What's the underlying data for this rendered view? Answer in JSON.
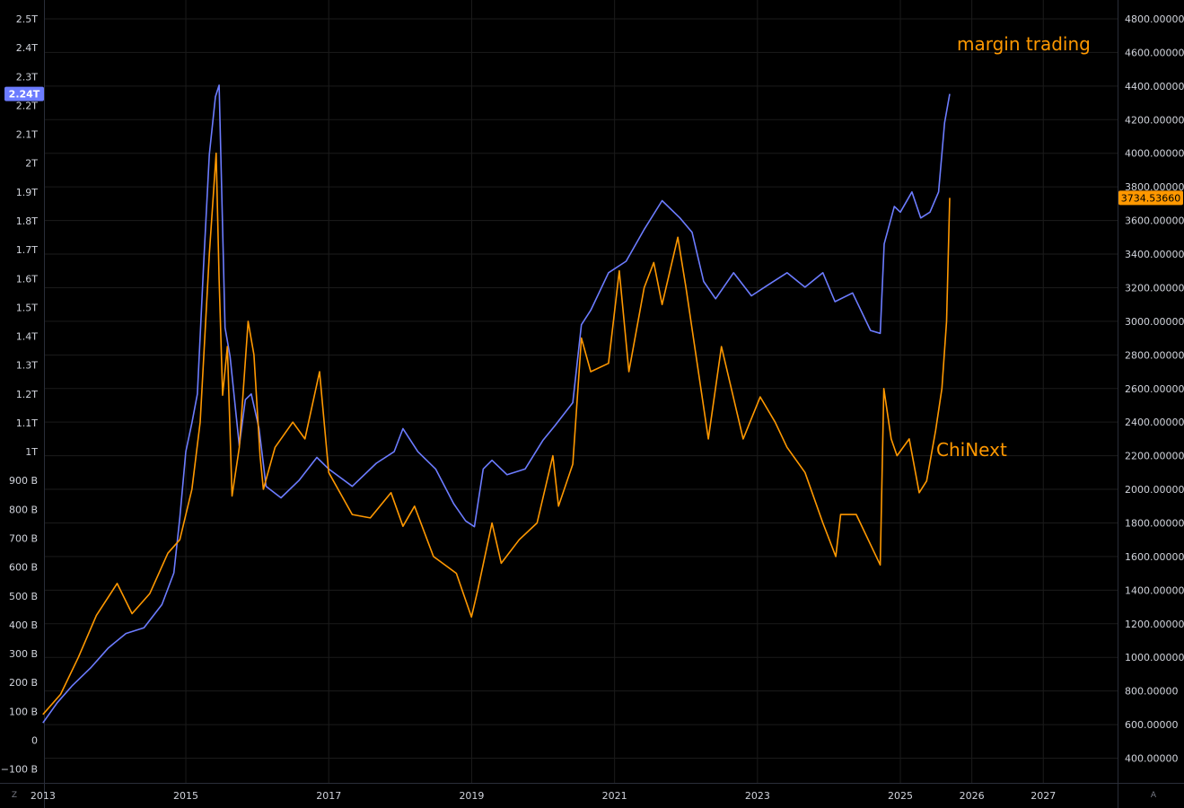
{
  "chart_data": {
    "type": "line",
    "theme": {
      "background": "#000000",
      "grid": "#1b1b1b",
      "axis_text": "#d1d4dc",
      "axis_line": "#2a2e39"
    },
    "x_axis": {
      "ticks": [
        {
          "label": "2013",
          "date": "2013-01-01"
        },
        {
          "label": "2015",
          "date": "2015-01-01"
        },
        {
          "label": "2017",
          "date": "2017-01-01"
        },
        {
          "label": "2019",
          "date": "2019-01-01"
        },
        {
          "label": "2021",
          "date": "2021-01-01"
        },
        {
          "label": "2023",
          "date": "2023-01-01"
        },
        {
          "label": "2025",
          "date": "2025-01-01"
        },
        {
          "label": "2026",
          "date": "2026-01-01"
        },
        {
          "label": "2027",
          "date": "2027-01-01"
        }
      ]
    },
    "left_axis": {
      "ylim": [
        -100,
        2500
      ],
      "units": "billions",
      "ticks": [
        {
          "label": "2.5T",
          "value": 2500
        },
        {
          "label": "2.4T",
          "value": 2400
        },
        {
          "label": "2.3T",
          "value": 2300
        },
        {
          "label": "2.2T",
          "value": 2200
        },
        {
          "label": "2.1T",
          "value": 2100
        },
        {
          "label": "2T",
          "value": 2000
        },
        {
          "label": "1.9T",
          "value": 1900
        },
        {
          "label": "1.8T",
          "value": 1800
        },
        {
          "label": "1.7T",
          "value": 1700
        },
        {
          "label": "1.6T",
          "value": 1600
        },
        {
          "label": "1.5T",
          "value": 1500
        },
        {
          "label": "1.4T",
          "value": 1400
        },
        {
          "label": "1.3T",
          "value": 1300
        },
        {
          "label": "1.2T",
          "value": 1200
        },
        {
          "label": "1.1T",
          "value": 1100
        },
        {
          "label": "1T",
          "value": 1000
        },
        {
          "label": "900 B",
          "value": 900
        },
        {
          "label": "800 B",
          "value": 800
        },
        {
          "label": "700 B",
          "value": 700
        },
        {
          "label": "600 B",
          "value": 600
        },
        {
          "label": "500 B",
          "value": 500
        },
        {
          "label": "400 B",
          "value": 400
        },
        {
          "label": "300 B",
          "value": 300
        },
        {
          "label": "200 B",
          "value": 200
        },
        {
          "label": "100 B",
          "value": 100
        },
        {
          "label": "0",
          "value": 0
        },
        {
          "label": "−100 B",
          "value": -100
        }
      ],
      "last_value_label": "2.24T",
      "last_value": 2240
    },
    "right_axis": {
      "ylim": [
        300,
        4850
      ],
      "ticks": [
        {
          "label": "4800.00000",
          "value": 4800
        },
        {
          "label": "4600.00000",
          "value": 4600
        },
        {
          "label": "4400.00000",
          "value": 4400
        },
        {
          "label": "4200.00000",
          "value": 4200
        },
        {
          "label": "4000.00000",
          "value": 4000
        },
        {
          "label": "3800.00000",
          "value": 3800
        },
        {
          "label": "3600.00000",
          "value": 3600
        },
        {
          "label": "3400.00000",
          "value": 3400
        },
        {
          "label": "3200.00000",
          "value": 3200
        },
        {
          "label": "3000.00000",
          "value": 3000
        },
        {
          "label": "2800.00000",
          "value": 2800
        },
        {
          "label": "2600.00000",
          "value": 2600
        },
        {
          "label": "2400.00000",
          "value": 2400
        },
        {
          "label": "2200.00000",
          "value": 2200
        },
        {
          "label": "2000.00000",
          "value": 2000
        },
        {
          "label": "1800.00000",
          "value": 1800
        },
        {
          "label": "1600.00000",
          "value": 1600
        },
        {
          "label": "1400.00000",
          "value": 1400
        },
        {
          "label": "1200.00000",
          "value": 1200
        },
        {
          "label": "1000.00000",
          "value": 1000
        },
        {
          "label": "800.00000",
          "value": 800
        },
        {
          "label": "600.00000",
          "value": 600
        },
        {
          "label": "400.00000",
          "value": 400
        }
      ],
      "last_value_label": "3734.53660",
      "last_value": 3734.5366
    },
    "annotations": [
      {
        "text": "margin trading",
        "color": "#ff9800"
      },
      {
        "text": "ChiNext",
        "color": "#ff9800"
      }
    ],
    "series": [
      {
        "name": "margin trading",
        "axis": "left",
        "color": "#6c7cff",
        "points": [
          [
            "2013-01-01",
            60
          ],
          [
            "2013-03-15",
            130
          ],
          [
            "2013-06-01",
            190
          ],
          [
            "2013-09-01",
            250
          ],
          [
            "2013-12-01",
            320
          ],
          [
            "2014-03-01",
            370
          ],
          [
            "2014-06-01",
            390
          ],
          [
            "2014-09-01",
            470
          ],
          [
            "2014-11-01",
            580
          ],
          [
            "2014-12-01",
            770
          ],
          [
            "2015-01-01",
            1000
          ],
          [
            "2015-02-01",
            1100
          ],
          [
            "2015-03-01",
            1200
          ],
          [
            "2015-04-01",
            1640
          ],
          [
            "2015-05-01",
            2030
          ],
          [
            "2015-06-01",
            2230
          ],
          [
            "2015-06-20",
            2270
          ],
          [
            "2015-07-05",
            1850
          ],
          [
            "2015-07-20",
            1430
          ],
          [
            "2015-08-15",
            1330
          ],
          [
            "2015-10-01",
            1020
          ],
          [
            "2015-11-01",
            1180
          ],
          [
            "2015-12-01",
            1200
          ],
          [
            "2016-01-10",
            1080
          ],
          [
            "2016-02-15",
            880
          ],
          [
            "2016-05-01",
            840
          ],
          [
            "2016-08-01",
            900
          ],
          [
            "2016-11-01",
            980
          ],
          [
            "2017-01-01",
            940
          ],
          [
            "2017-05-01",
            880
          ],
          [
            "2017-09-01",
            960
          ],
          [
            "2017-12-01",
            1000
          ],
          [
            "2018-01-15",
            1080
          ],
          [
            "2018-04-01",
            1000
          ],
          [
            "2018-07-01",
            940
          ],
          [
            "2018-10-01",
            820
          ],
          [
            "2018-12-01",
            760
          ],
          [
            "2019-01-15",
            740
          ],
          [
            "2019-03-01",
            940
          ],
          [
            "2019-04-15",
            970
          ],
          [
            "2019-07-01",
            920
          ],
          [
            "2019-10-01",
            940
          ],
          [
            "2020-01-01",
            1040
          ],
          [
            "2020-03-01",
            1090
          ],
          [
            "2020-06-01",
            1170
          ],
          [
            "2020-07-15",
            1440
          ],
          [
            "2020-09-01",
            1490
          ],
          [
            "2020-12-01",
            1620
          ],
          [
            "2021-03-01",
            1660
          ],
          [
            "2021-06-01",
            1770
          ],
          [
            "2021-09-01",
            1870
          ],
          [
            "2021-12-01",
            1810
          ],
          [
            "2022-02-01",
            1760
          ],
          [
            "2022-04-01",
            1590
          ],
          [
            "2022-06-01",
            1530
          ],
          [
            "2022-09-01",
            1620
          ],
          [
            "2022-12-01",
            1540
          ],
          [
            "2023-03-01",
            1580
          ],
          [
            "2023-06-01",
            1620
          ],
          [
            "2023-09-01",
            1570
          ],
          [
            "2023-12-01",
            1620
          ],
          [
            "2024-02-01",
            1520
          ],
          [
            "2024-05-01",
            1550
          ],
          [
            "2024-08-01",
            1420
          ],
          [
            "2024-09-20",
            1410
          ],
          [
            "2024-10-10",
            1720
          ],
          [
            "2024-12-01",
            1850
          ],
          [
            "2025-01-01",
            1830
          ],
          [
            "2025-03-01",
            1900
          ],
          [
            "2025-04-15",
            1810
          ],
          [
            "2025-06-01",
            1830
          ],
          [
            "2025-07-15",
            1900
          ],
          [
            "2025-08-15",
            2140
          ],
          [
            "2025-09-10",
            2240
          ]
        ]
      },
      {
        "name": "ChiNext",
        "axis": "right",
        "color": "#ff9800",
        "points": [
          [
            "2013-01-01",
            660
          ],
          [
            "2013-04-01",
            780
          ],
          [
            "2013-07-01",
            1000
          ],
          [
            "2013-10-01",
            1250
          ],
          [
            "2014-01-15",
            1440
          ],
          [
            "2014-04-01",
            1260
          ],
          [
            "2014-07-01",
            1380
          ],
          [
            "2014-10-01",
            1620
          ],
          [
            "2014-12-01",
            1700
          ],
          [
            "2015-02-01",
            2000
          ],
          [
            "2015-03-15",
            2400
          ],
          [
            "2015-05-01",
            3400
          ],
          [
            "2015-06-05",
            4000
          ],
          [
            "2015-06-20",
            3250
          ],
          [
            "2015-07-08",
            2560
          ],
          [
            "2015-08-01",
            2850
          ],
          [
            "2015-08-25",
            1960
          ],
          [
            "2015-10-01",
            2250
          ],
          [
            "2015-11-15",
            3000
          ],
          [
            "2015-12-15",
            2800
          ],
          [
            "2016-01-15",
            2200
          ],
          [
            "2016-02-01",
            2000
          ],
          [
            "2016-04-01",
            2250
          ],
          [
            "2016-07-01",
            2400
          ],
          [
            "2016-09-01",
            2300
          ],
          [
            "2016-11-15",
            2700
          ],
          [
            "2017-01-01",
            2100
          ],
          [
            "2017-05-01",
            1850
          ],
          [
            "2017-08-01",
            1830
          ],
          [
            "2017-11-15",
            1980
          ],
          [
            "2018-01-15",
            1780
          ],
          [
            "2018-03-15",
            1900
          ],
          [
            "2018-06-20",
            1600
          ],
          [
            "2018-10-15",
            1500
          ],
          [
            "2018-12-31",
            1240
          ],
          [
            "2019-02-01",
            1400
          ],
          [
            "2019-04-15",
            1800
          ],
          [
            "2019-06-01",
            1560
          ],
          [
            "2019-09-01",
            1700
          ],
          [
            "2019-12-01",
            1800
          ],
          [
            "2020-02-20",
            2200
          ],
          [
            "2020-03-20",
            1900
          ],
          [
            "2020-06-01",
            2150
          ],
          [
            "2020-07-15",
            2900
          ],
          [
            "2020-09-01",
            2700
          ],
          [
            "2020-12-01",
            2750
          ],
          [
            "2021-01-25",
            3300
          ],
          [
            "2021-03-15",
            2700
          ],
          [
            "2021-06-01",
            3200
          ],
          [
            "2021-07-20",
            3350
          ],
          [
            "2021-09-01",
            3100
          ],
          [
            "2021-11-20",
            3500
          ],
          [
            "2022-01-01",
            3200
          ],
          [
            "2022-04-25",
            2300
          ],
          [
            "2022-07-01",
            2850
          ],
          [
            "2022-10-20",
            2300
          ],
          [
            "2023-01-15",
            2550
          ],
          [
            "2023-04-01",
            2400
          ],
          [
            "2023-06-01",
            2250
          ],
          [
            "2023-09-01",
            2100
          ],
          [
            "2023-12-01",
            1800
          ],
          [
            "2024-02-05",
            1600
          ],
          [
            "2024-03-01",
            1850
          ],
          [
            "2024-05-20",
            1850
          ],
          [
            "2024-09-20",
            1550
          ],
          [
            "2024-10-08",
            2600
          ],
          [
            "2024-11-15",
            2300
          ],
          [
            "2024-12-15",
            2200
          ],
          [
            "2025-02-15",
            2300
          ],
          [
            "2025-04-07",
            1980
          ],
          [
            "2025-05-15",
            2050
          ],
          [
            "2025-06-30",
            2350
          ],
          [
            "2025-08-01",
            2600
          ],
          [
            "2025-08-25",
            3000
          ],
          [
            "2025-09-10",
            3734.5366
          ]
        ]
      }
    ]
  },
  "corner_buttons": {
    "left": "Z",
    "right": "A"
  }
}
